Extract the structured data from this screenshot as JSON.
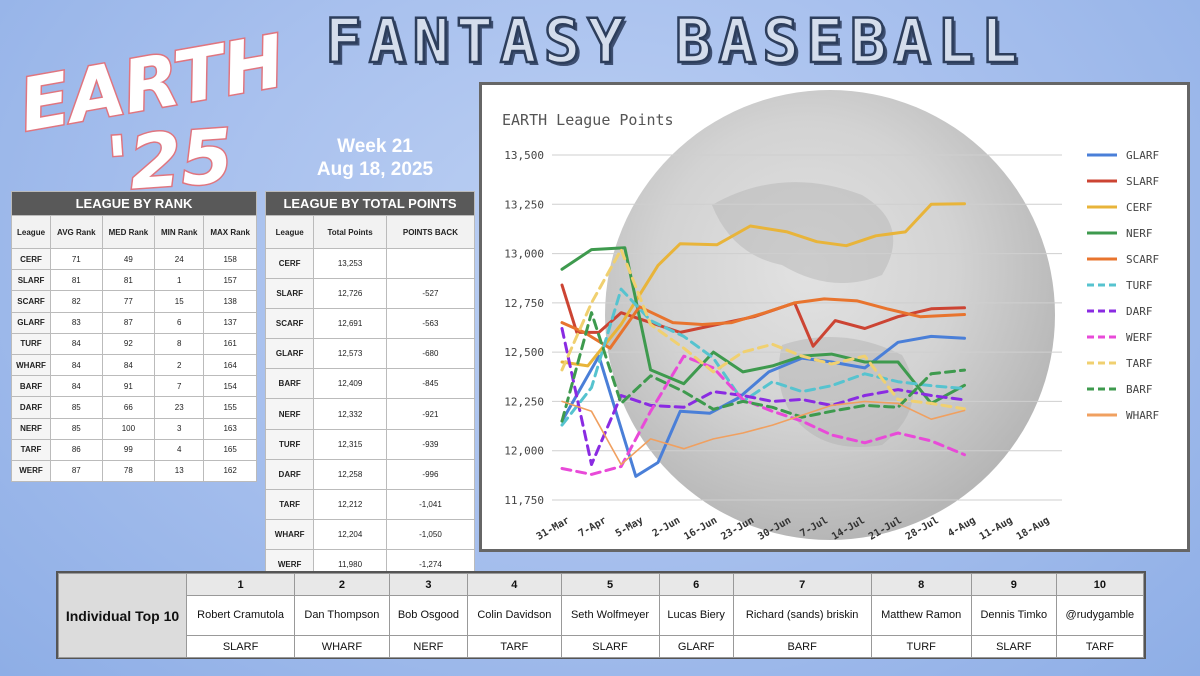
{
  "logo": {
    "line1": "EARTH",
    "line2": "'25"
  },
  "title": "FANTASY BASEBALL",
  "week": {
    "label": "Week 21",
    "date": "Aug 18, 2025"
  },
  "rank_table": {
    "caption": "LEAGUE BY RANK",
    "headers": [
      "League",
      "AVG Rank",
      "MED Rank",
      "MIN Rank",
      "MAX Rank"
    ],
    "rows": [
      [
        "CERF",
        "71",
        "49",
        "24",
        "158"
      ],
      [
        "SLARF",
        "81",
        "81",
        "1",
        "157"
      ],
      [
        "SCARF",
        "82",
        "77",
        "15",
        "138"
      ],
      [
        "GLARF",
        "83",
        "87",
        "6",
        "137"
      ],
      [
        "TURF",
        "84",
        "92",
        "8",
        "161"
      ],
      [
        "WHARF",
        "84",
        "84",
        "2",
        "164"
      ],
      [
        "BARF",
        "84",
        "91",
        "7",
        "154"
      ],
      [
        "DARF",
        "85",
        "66",
        "23",
        "155"
      ],
      [
        "NERF",
        "85",
        "100",
        "3",
        "163"
      ],
      [
        "TARF",
        "86",
        "99",
        "4",
        "165"
      ],
      [
        "WERF",
        "87",
        "78",
        "13",
        "162"
      ]
    ]
  },
  "points_table": {
    "caption": "LEAGUE BY TOTAL POINTS",
    "headers": [
      "League",
      "Total Points",
      "POINTS BACK"
    ],
    "rows": [
      [
        "CERF",
        "13,253",
        ""
      ],
      [
        "SLARF",
        "12,726",
        "-527"
      ],
      [
        "SCARF",
        "12,691",
        "-563"
      ],
      [
        "GLARF",
        "12,573",
        "-680"
      ],
      [
        "BARF",
        "12,409",
        "-845"
      ],
      [
        "NERF",
        "12,332",
        "-921"
      ],
      [
        "TURF",
        "12,315",
        "-939"
      ],
      [
        "DARF",
        "12,258",
        "-996"
      ],
      [
        "TARF",
        "12,212",
        "-1,041"
      ],
      [
        "WHARF",
        "12,204",
        "-1,050"
      ],
      [
        "WERF",
        "11,980",
        "-1,274"
      ]
    ]
  },
  "chart_data": {
    "type": "line",
    "title": "EARTH League Points",
    "x": [
      "31-Mar",
      "7-Apr",
      "5-May",
      "2-Jun",
      "16-Jun",
      "23-Jun",
      "30-Jun",
      "7-Jul",
      "14-Jul",
      "21-Jul",
      "28-Jul",
      "4-Aug",
      "11-Aug",
      "18-Aug"
    ],
    "ylim": [
      11750,
      13500
    ],
    "yticks": [
      11750,
      12000,
      12250,
      12500,
      12750,
      13000,
      13250,
      13500
    ],
    "ytick_labels": [
      "11,750",
      "12,000",
      "12,250",
      "12,500",
      "12,750",
      "13,000",
      "13,250",
      "13,500"
    ],
    "grid": true,
    "legend_position": "right",
    "series": [
      {
        "name": "GLARF",
        "color": "#4a7fd8",
        "dash": false,
        "width": 3,
        "points": [
          [
            0,
            12150
          ],
          [
            1,
            12480
          ],
          [
            2,
            11870
          ],
          [
            2.6,
            11940
          ],
          [
            3.2,
            12200
          ],
          [
            4,
            12190
          ],
          [
            4.8,
            12270
          ],
          [
            5.6,
            12400
          ],
          [
            6.5,
            12470
          ],
          [
            7.3,
            12450
          ],
          [
            8.2,
            12420
          ],
          [
            9.1,
            12550
          ],
          [
            10,
            12580
          ],
          [
            10.9,
            12570
          ]
        ]
      },
      {
        "name": "SLARF",
        "color": "#cc4433",
        "dash": false,
        "width": 3,
        "points": [
          [
            0,
            12840
          ],
          [
            0.4,
            12600
          ],
          [
            1,
            12600
          ],
          [
            1.6,
            12700
          ],
          [
            2.4,
            12650
          ],
          [
            3.2,
            12600
          ],
          [
            4.2,
            12640
          ],
          [
            5.2,
            12680
          ],
          [
            6.3,
            12750
          ],
          [
            6.8,
            12530
          ],
          [
            7.4,
            12660
          ],
          [
            8.2,
            12620
          ],
          [
            9.1,
            12680
          ],
          [
            10,
            12720
          ],
          [
            10.9,
            12725
          ]
        ]
      },
      {
        "name": "CERF",
        "color": "#e8b43a",
        "dash": false,
        "width": 3,
        "points": [
          [
            0,
            12450
          ],
          [
            0.7,
            12430
          ],
          [
            1.6,
            12640
          ],
          [
            2.6,
            12940
          ],
          [
            3.2,
            13050
          ],
          [
            4.2,
            13045
          ],
          [
            5.1,
            13140
          ],
          [
            6.1,
            13110
          ],
          [
            6.9,
            13060
          ],
          [
            7.7,
            13040
          ],
          [
            8.5,
            13090
          ],
          [
            9.3,
            13110
          ],
          [
            10,
            13250
          ],
          [
            10.9,
            13253
          ]
        ]
      },
      {
        "name": "NERF",
        "color": "#3e9a4e",
        "dash": false,
        "width": 3,
        "points": [
          [
            0,
            12920
          ],
          [
            0.8,
            13020
          ],
          [
            1.7,
            13030
          ],
          [
            2.4,
            12410
          ],
          [
            3.3,
            12340
          ],
          [
            4.1,
            12500
          ],
          [
            4.9,
            12400
          ],
          [
            5.7,
            12430
          ],
          [
            6.5,
            12480
          ],
          [
            7.3,
            12490
          ],
          [
            8.2,
            12450
          ],
          [
            9.1,
            12450
          ],
          [
            10,
            12240
          ],
          [
            10.9,
            12332
          ]
        ]
      },
      {
        "name": "SCARF",
        "color": "#e8742e",
        "dash": false,
        "width": 3,
        "points": [
          [
            0,
            12650
          ],
          [
            0.6,
            12600
          ],
          [
            1.3,
            12520
          ],
          [
            2.1,
            12730
          ],
          [
            3,
            12650
          ],
          [
            3.8,
            12640
          ],
          [
            4.6,
            12650
          ],
          [
            5.5,
            12700
          ],
          [
            6.3,
            12750
          ],
          [
            7.1,
            12770
          ],
          [
            8,
            12760
          ],
          [
            8.8,
            12720
          ],
          [
            9.7,
            12680
          ],
          [
            10.9,
            12691
          ]
        ]
      },
      {
        "name": "TURF",
        "color": "#56c3cf",
        "dash": true,
        "width": 3,
        "points": [
          [
            0,
            12130
          ],
          [
            0.8,
            12320
          ],
          [
            1.6,
            12820
          ],
          [
            2.4,
            12660
          ],
          [
            3.3,
            12580
          ],
          [
            4.1,
            12470
          ],
          [
            4.9,
            12250
          ],
          [
            5.7,
            12350
          ],
          [
            6.5,
            12300
          ],
          [
            7.3,
            12330
          ],
          [
            8.2,
            12390
          ],
          [
            9.1,
            12350
          ],
          [
            10,
            12330
          ],
          [
            10.9,
            12315
          ]
        ]
      },
      {
        "name": "DARF",
        "color": "#8a2be2",
        "dash": true,
        "width": 3,
        "points": [
          [
            0,
            12620
          ],
          [
            0.8,
            11930
          ],
          [
            1.6,
            12280
          ],
          [
            2.4,
            12230
          ],
          [
            3.3,
            12220
          ],
          [
            4.1,
            12300
          ],
          [
            4.9,
            12280
          ],
          [
            5.7,
            12250
          ],
          [
            6.5,
            12260
          ],
          [
            7.3,
            12230
          ],
          [
            8.2,
            12280
          ],
          [
            9.1,
            12310
          ],
          [
            10,
            12280
          ],
          [
            10.9,
            12258
          ]
        ]
      },
      {
        "name": "WERF",
        "color": "#e84ad8",
        "dash": true,
        "width": 3,
        "points": [
          [
            0,
            11910
          ],
          [
            0.8,
            11880
          ],
          [
            1.6,
            11920
          ],
          [
            2.4,
            12200
          ],
          [
            3.3,
            12480
          ],
          [
            4.1,
            12420
          ],
          [
            4.9,
            12260
          ],
          [
            5.7,
            12200
          ],
          [
            6.5,
            12150
          ],
          [
            7.3,
            12080
          ],
          [
            8.2,
            12040
          ],
          [
            9.1,
            12090
          ],
          [
            10,
            12050
          ],
          [
            10.9,
            11980
          ]
        ]
      },
      {
        "name": "TARF",
        "color": "#f0d070",
        "dash": true,
        "width": 3,
        "points": [
          [
            0,
            12410
          ],
          [
            0.8,
            12750
          ],
          [
            1.6,
            13020
          ],
          [
            2.4,
            12640
          ],
          [
            3.3,
            12520
          ],
          [
            4.1,
            12400
          ],
          [
            4.9,
            12500
          ],
          [
            5.7,
            12540
          ],
          [
            6.5,
            12480
          ],
          [
            7.3,
            12440
          ],
          [
            8.2,
            12480
          ],
          [
            9.1,
            12260
          ],
          [
            10,
            12240
          ],
          [
            10.9,
            12212
          ]
        ]
      },
      {
        "name": "BARF",
        "color": "#3e9a4e",
        "dash": true,
        "width": 3,
        "points": [
          [
            0,
            12150
          ],
          [
            0.8,
            12700
          ],
          [
            1.6,
            12240
          ],
          [
            2.4,
            12380
          ],
          [
            3.3,
            12300
          ],
          [
            4.1,
            12210
          ],
          [
            4.9,
            12250
          ],
          [
            5.7,
            12220
          ],
          [
            6.5,
            12170
          ],
          [
            7.3,
            12200
          ],
          [
            8.2,
            12230
          ],
          [
            9.1,
            12220
          ],
          [
            10,
            12390
          ],
          [
            10.9,
            12409
          ]
        ]
      },
      {
        "name": "WHARF",
        "color": "#f0a060",
        "dash": false,
        "width": 1.6,
        "points": [
          [
            0,
            12250
          ],
          [
            0.8,
            12200
          ],
          [
            1.6,
            11930
          ],
          [
            2.4,
            12060
          ],
          [
            3.3,
            12010
          ],
          [
            4.1,
            12060
          ],
          [
            4.9,
            12090
          ],
          [
            5.7,
            12130
          ],
          [
            6.5,
            12180
          ],
          [
            7.3,
            12230
          ],
          [
            8.2,
            12250
          ],
          [
            9.1,
            12240
          ],
          [
            10,
            12160
          ],
          [
            10.9,
            12204
          ]
        ]
      }
    ]
  },
  "top10": {
    "label": "Individual Top 10",
    "ranks": [
      "1",
      "2",
      "3",
      "4",
      "5",
      "6",
      "7",
      "8",
      "9",
      "10"
    ],
    "names": [
      "Robert Cramutola",
      "Dan Thompson",
      "Bob Osgood",
      "Colin Davidson",
      "Seth Wolfmeyer",
      "Lucas Biery",
      "Richard (sands) briskin",
      "Matthew Ramon",
      "Dennis Timko",
      "@rudygamble"
    ],
    "teams": [
      "SLARF",
      "WHARF",
      "NERF",
      "TARF",
      "SLARF",
      "GLARF",
      "BARF",
      "TURF",
      "SLARF",
      "TARF"
    ]
  }
}
